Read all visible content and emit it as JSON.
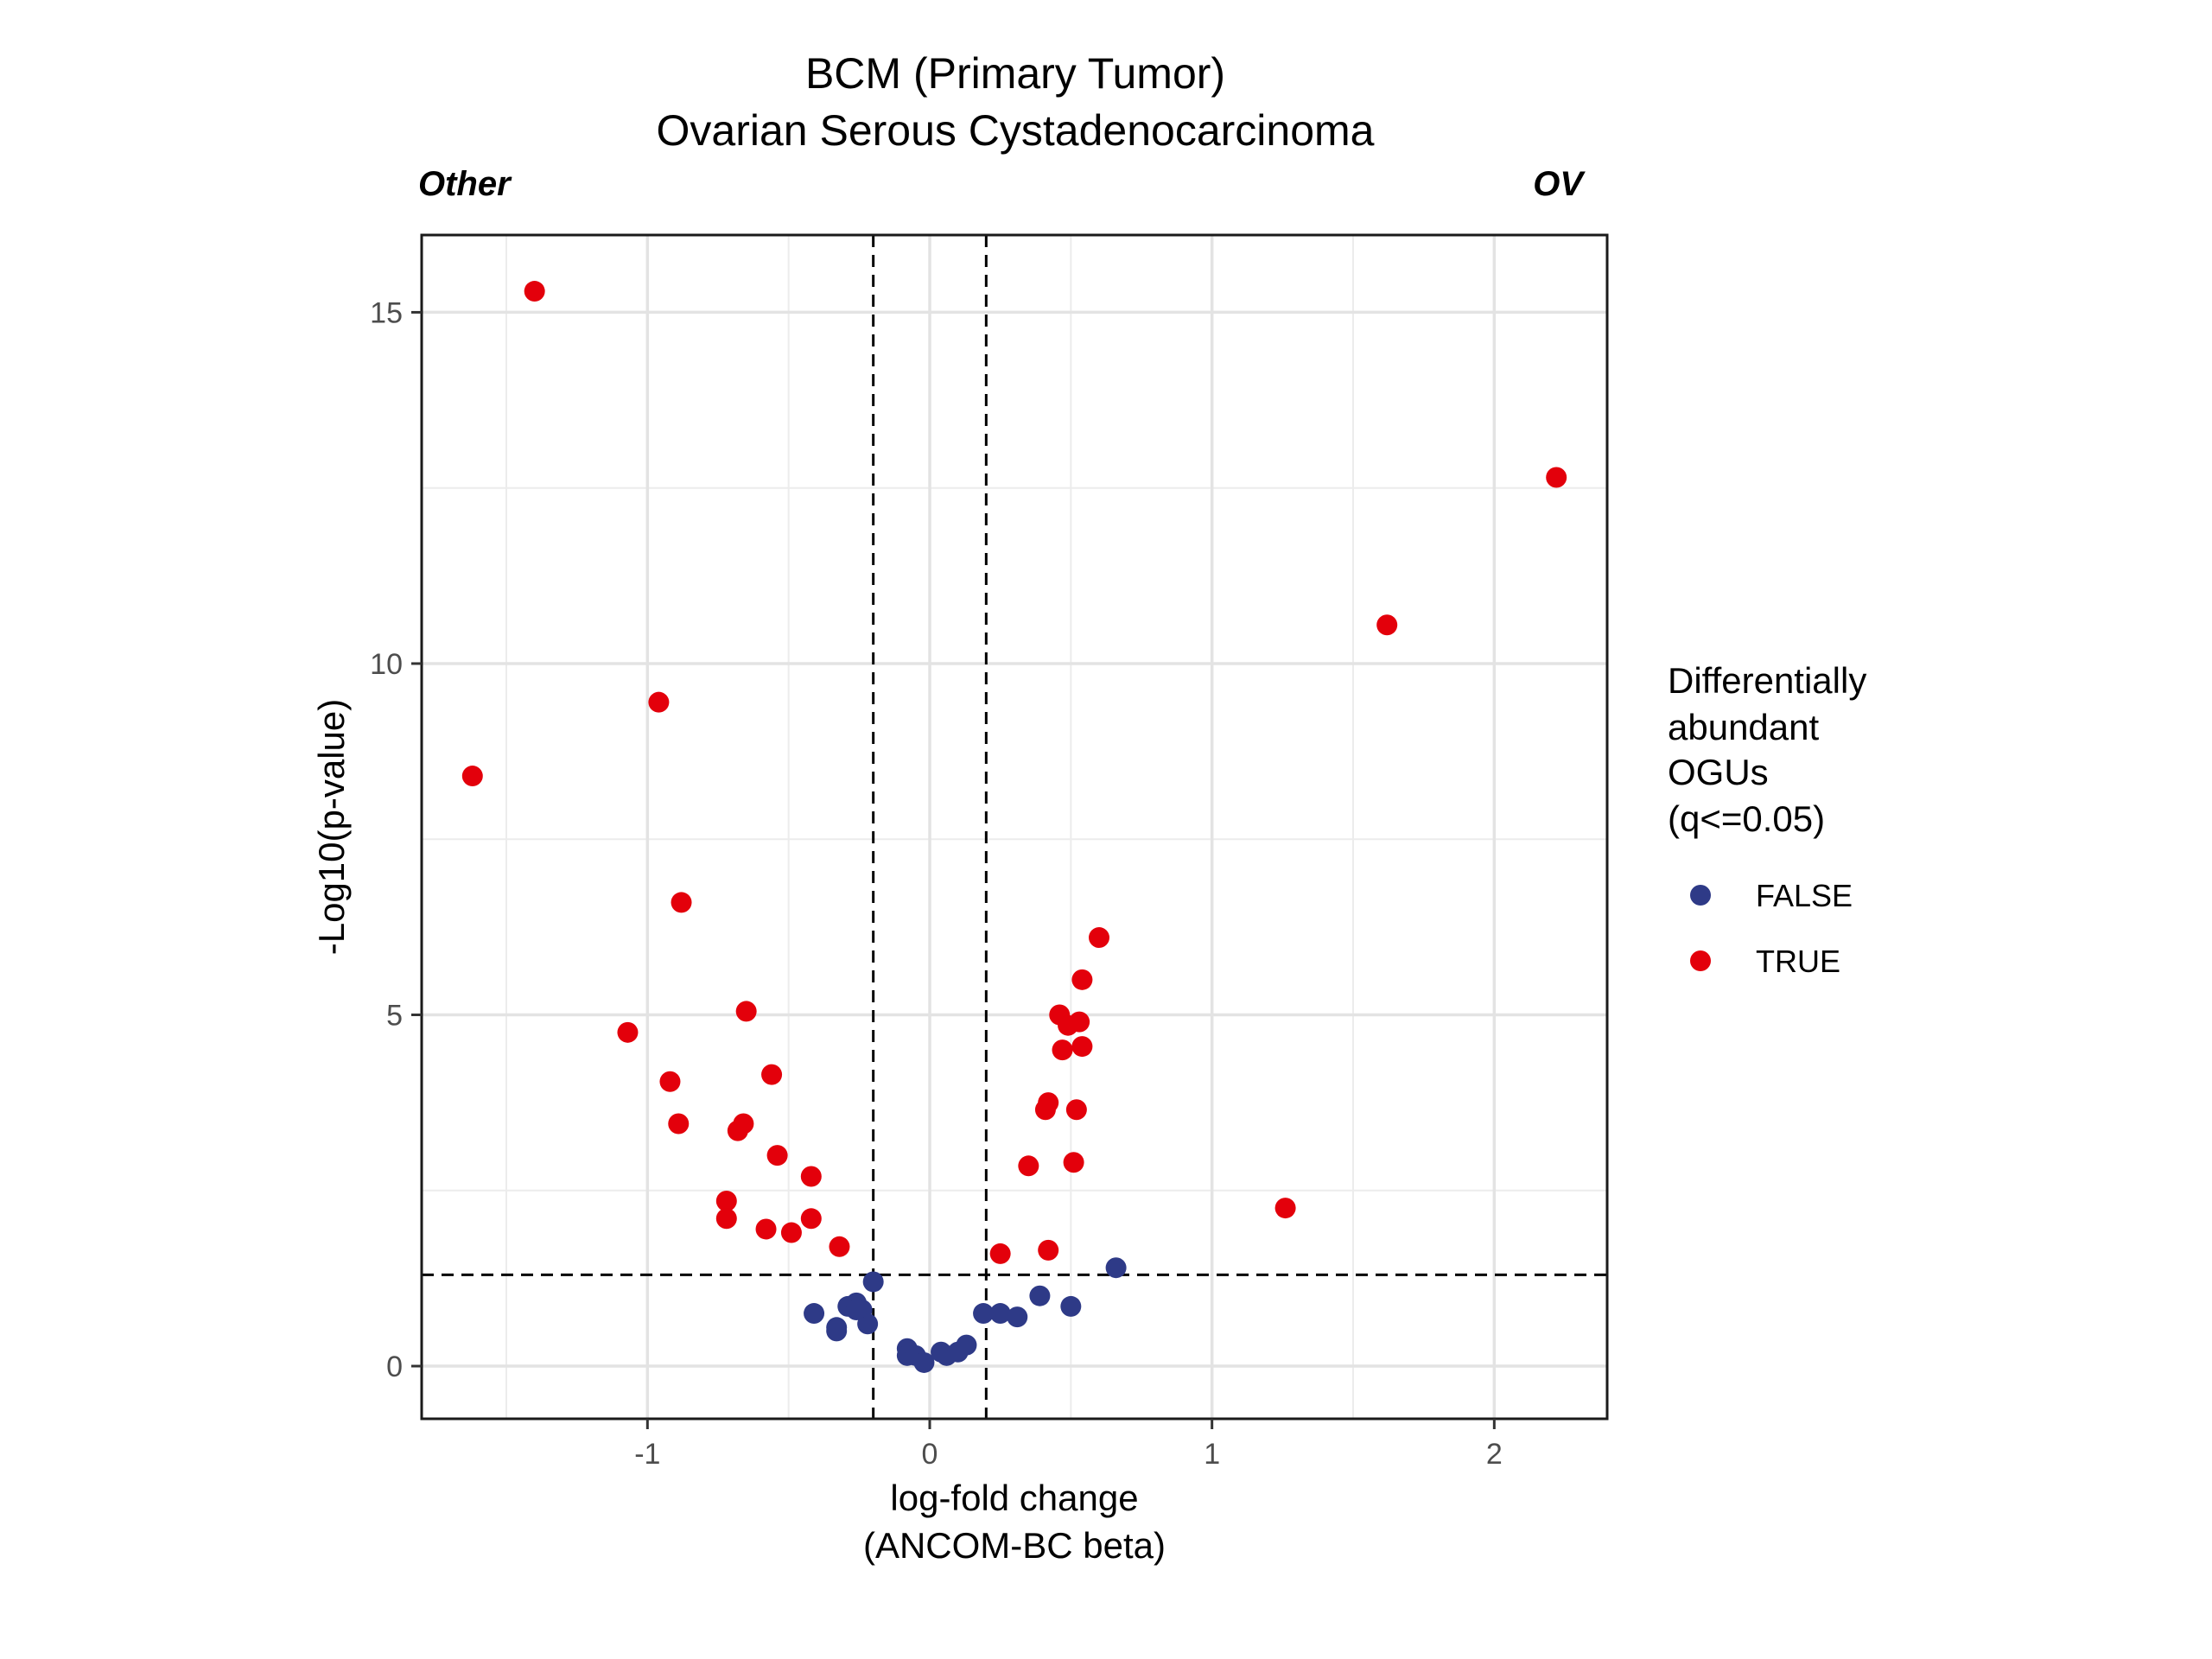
{
  "chart_data": {
    "type": "scatter",
    "title": "BCM (Primary Tumor)",
    "subtitle": "Ovarian Serous Cystadenocarcinoma",
    "corner_labels": {
      "left": "Other",
      "right": "OV"
    },
    "xlabel_line1": "log-fold change",
    "xlabel_line2": "(ANCOM-BC beta)",
    "ylabel": "-Log10(p-value)",
    "xlim": [
      -1.8,
      2.4
    ],
    "ylim": [
      -0.75,
      16.1
    ],
    "x_ticks": [
      -1,
      0,
      1,
      2
    ],
    "x_tick_labels": [
      "-1",
      "0",
      "1",
      "2"
    ],
    "y_ticks": [
      0,
      5,
      10,
      15
    ],
    "y_tick_labels": [
      "0",
      "5",
      "10",
      "15"
    ],
    "x_minor_grid": [
      -1.5,
      -0.5,
      0.5,
      1.5
    ],
    "y_minor_grid": [
      2.5,
      7.5,
      12.5
    ],
    "grid": true,
    "reference_lines": {
      "vertical": [
        -0.2,
        0.2
      ],
      "horizontal": [
        1.3
      ]
    },
    "legend": {
      "title_lines": [
        "Differentially",
        "abundant",
        "OGUs",
        "(q<=0.05)"
      ],
      "position": "right",
      "entries": [
        {
          "label": "FALSE",
          "color": "#2e3a87"
        },
        {
          "label": "TRUE",
          "color": "#e3000b"
        }
      ]
    },
    "series": [
      {
        "name": "TRUE",
        "color": "#e3000b",
        "x": [
          -1.4,
          -1.62,
          -0.96,
          -0.88,
          -1.07,
          -0.65,
          -0.56,
          -0.92,
          -0.89,
          -0.68,
          -0.66,
          -0.54,
          -0.42,
          -0.72,
          -0.72,
          -0.58,
          -0.49,
          -0.42,
          -0.32,
          2.22,
          1.62,
          1.26,
          0.6,
          0.54,
          0.46,
          0.49,
          0.53,
          0.47,
          0.54,
          0.42,
          0.41,
          0.52,
          0.35,
          0.51,
          0.25,
          0.42
        ],
        "y": [
          15.3,
          8.4,
          9.45,
          6.6,
          4.75,
          5.05,
          4.15,
          4.05,
          3.45,
          3.35,
          3.45,
          3.0,
          2.7,
          2.35,
          2.1,
          1.95,
          1.9,
          2.1,
          1.7,
          12.65,
          10.55,
          2.25,
          6.1,
          5.5,
          5.0,
          4.85,
          4.9,
          4.5,
          4.55,
          3.75,
          3.65,
          3.65,
          2.85,
          2.9,
          1.6,
          1.65
        ]
      },
      {
        "name": "FALSE",
        "color": "#2e3a87",
        "x": [
          -0.2,
          -0.41,
          -0.33,
          -0.33,
          -0.29,
          -0.26,
          -0.24,
          -0.22,
          -0.26,
          -0.08,
          -0.08,
          -0.05,
          -0.02,
          0.04,
          0.06,
          0.1,
          0.13,
          0.19,
          0.25,
          0.31,
          0.39,
          0.5,
          0.66
        ],
        "y": [
          1.2,
          0.75,
          0.55,
          0.5,
          0.85,
          0.9,
          0.8,
          0.6,
          0.8,
          0.25,
          0.15,
          0.15,
          0.05,
          0.2,
          0.15,
          0.2,
          0.3,
          0.75,
          0.75,
          0.7,
          1.0,
          0.85,
          1.4
        ]
      }
    ]
  }
}
